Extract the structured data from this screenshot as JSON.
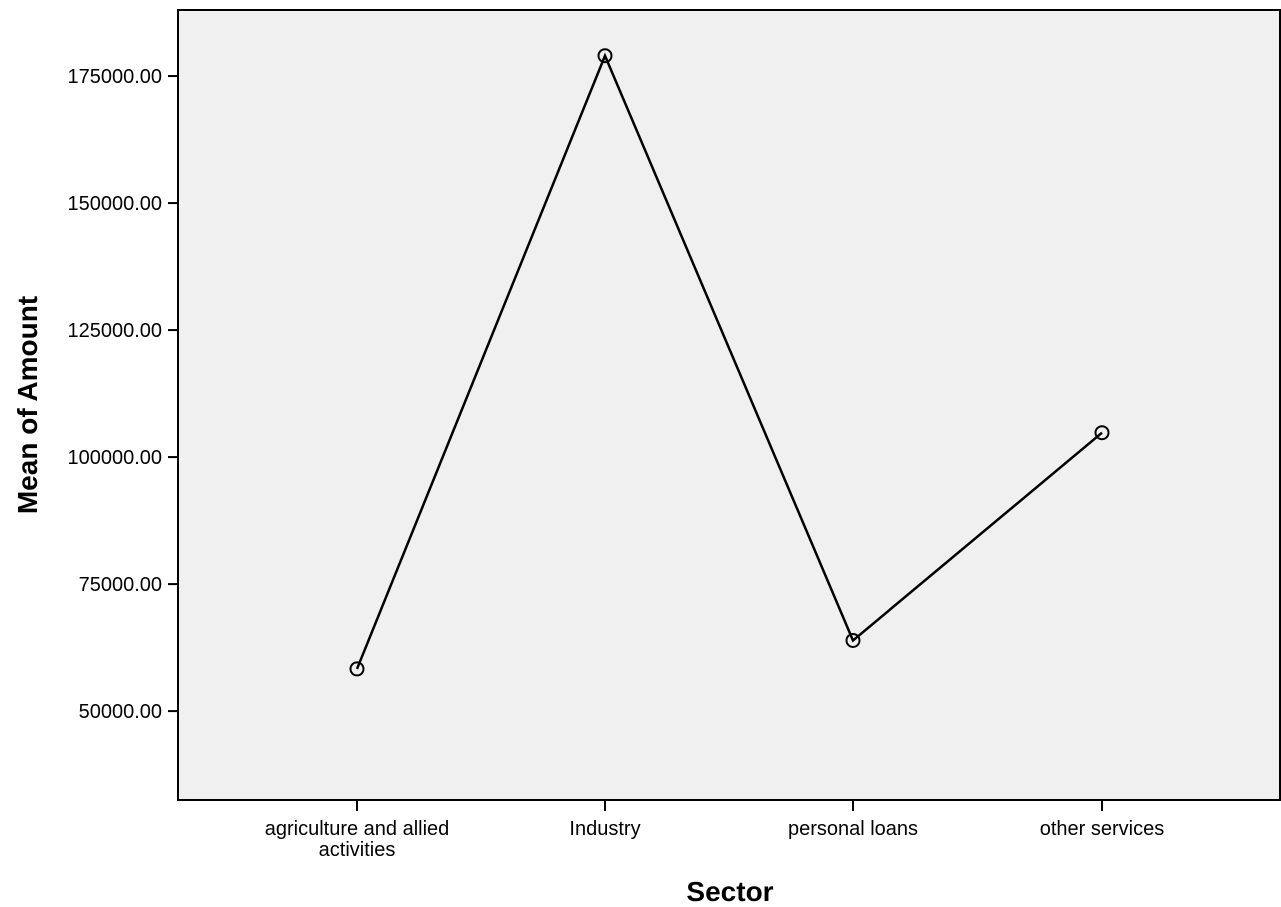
{
  "chart_data": {
    "type": "line",
    "title": "",
    "xlabel": "Sector",
    "ylabel": "Mean of Amount",
    "categories": [
      [
        "agriculture and allied",
        "activities"
      ],
      [
        "Industry"
      ],
      [
        "personal loans"
      ],
      [
        "other services"
      ]
    ],
    "series": [
      {
        "values": [
          58300,
          179000,
          63900,
          104800
        ],
        "marker": "open-circle"
      }
    ],
    "ylim": [
      32500,
      188000
    ],
    "yticks": [
      50000,
      75000,
      100000,
      125000,
      150000,
      175000
    ],
    "ytick_labels": [
      "50000.00",
      "75000.00",
      "100000.00",
      "125000.00",
      "150000.00",
      "175000.00"
    ],
    "grid": false,
    "legend": "none",
    "colors": {
      "plot_background": "#f0f0f0",
      "line": "#000000",
      "frame": "#000000"
    }
  }
}
